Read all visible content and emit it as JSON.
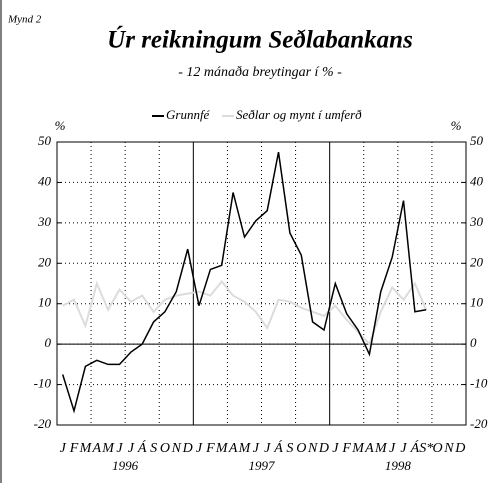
{
  "chart_data": {
    "type": "line",
    "figure_label": "Mynd 2",
    "title": "Úr reikningum Seðlabankans",
    "subtitle": "- 12 mánaða breytingar í % -",
    "ylabel": "%",
    "y2label": "%",
    "categories": [
      "J",
      "F",
      "M",
      "A",
      "M",
      "J",
      "J",
      "Á",
      "S",
      "O",
      "N",
      "D",
      "J",
      "F",
      "M",
      "A",
      "M",
      "J",
      "J",
      "Á",
      "S",
      "O",
      "N",
      "D",
      "J",
      "F",
      "M",
      "A",
      "M",
      "J",
      "J",
      "Á",
      "S*",
      "O",
      "N",
      "D"
    ],
    "year_labels": [
      "1996",
      "1997",
      "1998"
    ],
    "ylim": [
      -20,
      50
    ],
    "yticks": [
      -20,
      -10,
      0,
      10,
      20,
      30,
      40,
      50
    ],
    "y2lim": [
      -20,
      50
    ],
    "y2ticks": [
      -20,
      -10,
      0,
      10,
      20,
      30,
      40,
      50
    ],
    "grid": true,
    "series": [
      {
        "name": "Grunnfé",
        "color": "#000000",
        "values": [
          -7.5,
          -16.5,
          -5.5,
          -4,
          -5,
          -5,
          -2,
          0,
          5.5,
          8,
          13,
          23.5,
          9.5,
          18.5,
          19.5,
          37.5,
          26.5,
          30.5,
          33,
          47.5,
          27.5,
          22,
          5.5,
          3.5,
          15,
          7.5,
          3.5,
          -2.5,
          13,
          21.5,
          35.5,
          8,
          8.5,
          null,
          null,
          null
        ]
      },
      {
        "name": "Seðlar og mynt í umferð",
        "color": "#dcdcdc",
        "values": [
          9.5,
          11,
          4.5,
          15,
          8.5,
          13.5,
          10.5,
          12,
          8,
          11,
          12,
          12.5,
          13,
          12,
          15.5,
          12,
          10.5,
          8,
          4,
          11,
          10.5,
          9,
          8,
          7,
          9.5,
          6,
          3,
          0,
          8,
          14,
          11,
          15,
          8.5,
          null,
          null,
          null
        ]
      }
    ]
  }
}
